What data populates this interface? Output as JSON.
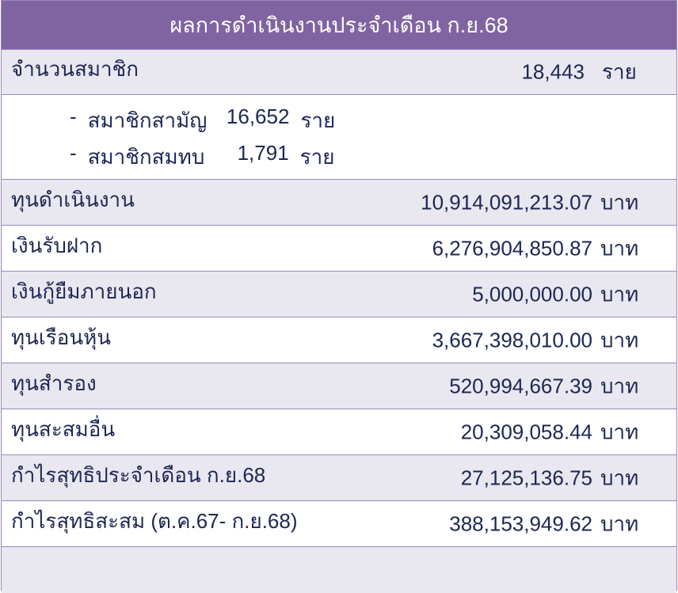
{
  "title": "ผลการดำเนินงานประจำเดือน ก.ย.68",
  "members": {
    "label": "จำนวนสมาชิก",
    "value": "18,443",
    "unit": "ราย"
  },
  "member_breakdown": [
    {
      "prefix": "-",
      "label": "สมาชิกสามัญ",
      "value": "16,652",
      "unit": "ราย"
    },
    {
      "prefix": "-",
      "label": "สมาชิกสมทบ",
      "value": "1,791",
      "unit": "ราย"
    }
  ],
  "rows": [
    {
      "label": "ทุนดำเนินงาน",
      "value": "10,914,091,213.07",
      "unit": "บาท"
    },
    {
      "label": "เงินรับฝาก",
      "value": "6,276,904,850.87",
      "unit": "บาท"
    },
    {
      "label": "เงินกู้ยืมภายนอก",
      "value": "5,000,000.00",
      "unit": "บาท"
    },
    {
      "label": "ทุนเรือนหุ้น",
      "value": "3,667,398,010.00",
      "unit": "บาท"
    },
    {
      "label": "ทุนสำรอง",
      "value": "520,994,667.39",
      "unit": "บาท"
    },
    {
      "label": "ทุนสะสมอื่น",
      "value": "20,309,058.44",
      "unit": "บาท"
    },
    {
      "label": "กำไรสุทธิประจำเดือน ก.ย.68",
      "value": "27,125,136.75",
      "unit": "บาท"
    },
    {
      "label": "กำไรสุทธิสะสม (ต.ค.67- ก.ย.68)",
      "value": "388,153,949.62",
      "unit": "บาท"
    }
  ],
  "colors": {
    "header": "#8064a2",
    "row_alt": "#e9e7ef",
    "text": "#1d2654",
    "border": "#9a88bb"
  }
}
